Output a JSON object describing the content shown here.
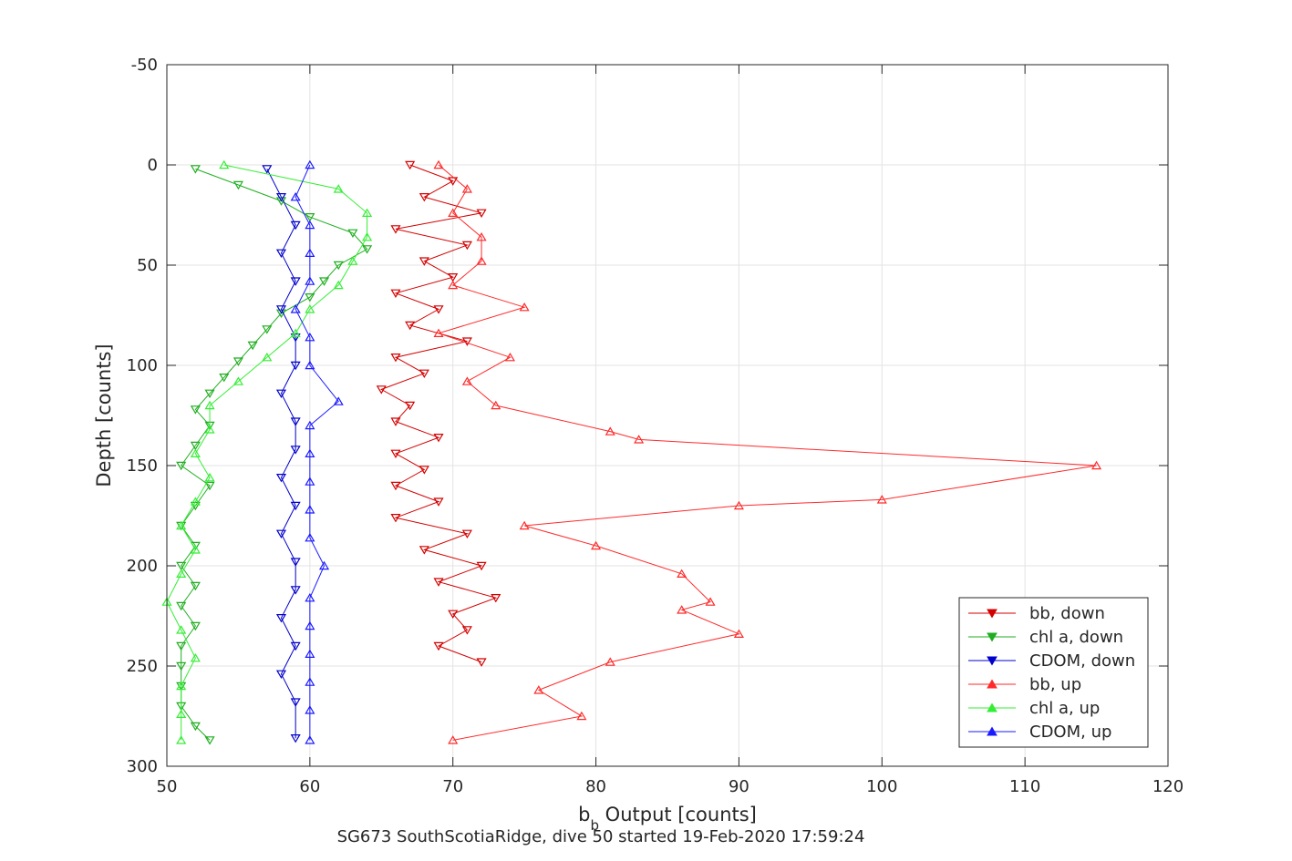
{
  "chart_data": {
    "type": "line",
    "xlabel_main": "b",
    "xlabel_sub": "b",
    "xlabel_rest": " Output [counts]",
    "ylabel": "Depth [counts]",
    "caption": "SG673 SouthScotiaRidge, dive 50 started 19-Feb-2020 17:59:24",
    "xlim": [
      50,
      120
    ],
    "ylim": [
      -50,
      300
    ],
    "y_reversed": true,
    "grid": true,
    "legend_position": "bottom-right",
    "xticks": [
      50,
      60,
      70,
      80,
      90,
      100,
      110,
      120
    ],
    "yticks": [
      -50,
      0,
      50,
      100,
      150,
      200,
      250,
      300
    ],
    "xtick_labels": [
      "50",
      "60",
      "70",
      "80",
      "90",
      "100",
      "110",
      "120"
    ],
    "ytick_labels": [
      "-50",
      "0",
      "50",
      "100",
      "150",
      "200",
      "250",
      "300"
    ],
    "series": [
      {
        "name": "bb, down",
        "color": "#d40000",
        "marker": "triangle-down",
        "depth": [
          0,
          8,
          16,
          24,
          32,
          40,
          48,
          56,
          64,
          72,
          80,
          88,
          96,
          104,
          112,
          120,
          128,
          136,
          144,
          152,
          160,
          168,
          176,
          184,
          192,
          200,
          208,
          216,
          224,
          232,
          240,
          248
        ],
        "values": [
          67,
          70,
          68,
          72,
          66,
          71,
          68,
          70,
          66,
          69,
          67,
          71,
          66,
          68,
          65,
          67,
          66,
          69,
          66,
          68,
          66,
          69,
          66,
          71,
          68,
          72,
          69,
          73,
          70,
          71,
          69,
          72
        ]
      },
      {
        "name": "chl a, down",
        "color": "#1fae1f",
        "marker": "triangle-down",
        "depth": [
          2,
          10,
          18,
          26,
          34,
          42,
          50,
          58,
          66,
          74,
          82,
          90,
          98,
          106,
          114,
          122,
          130,
          140,
          150,
          160,
          170,
          180,
          190,
          200,
          210,
          220,
          230,
          240,
          250,
          260,
          270,
          280,
          287
        ],
        "values": [
          52,
          55,
          58,
          60,
          63,
          64,
          62,
          61,
          60,
          58,
          57,
          56,
          55,
          54,
          53,
          52,
          53,
          52,
          51,
          53,
          52,
          51,
          52,
          51,
          52,
          51,
          52,
          51,
          51,
          51,
          51,
          52,
          53
        ]
      },
      {
        "name": "CDOM, down",
        "color": "#0000cc",
        "marker": "triangle-down",
        "depth": [
          2,
          16,
          30,
          44,
          58,
          72,
          86,
          100,
          114,
          128,
          142,
          156,
          170,
          184,
          198,
          212,
          226,
          240,
          254,
          268,
          286
        ],
        "values": [
          57,
          58,
          59,
          58,
          59,
          58,
          59,
          59,
          58,
          59,
          59,
          58,
          59,
          58,
          59,
          59,
          58,
          59,
          58,
          59,
          59
        ]
      },
      {
        "name": "bb, up",
        "color": "#ff2a2a",
        "marker": "triangle-up",
        "depth": [
          0,
          12,
          24,
          36,
          48,
          60,
          71,
          84,
          96,
          108,
          120,
          133,
          137,
          150,
          167,
          170,
          180,
          190,
          204,
          218,
          222,
          234,
          248,
          262,
          275,
          287
        ],
        "values": [
          69,
          71,
          70,
          72,
          72,
          70,
          75,
          69,
          74,
          71,
          73,
          81,
          83,
          115,
          100,
          90,
          75,
          80,
          86,
          88,
          86,
          90,
          81,
          76,
          79,
          70
        ]
      },
      {
        "name": "chl a, up",
        "color": "#33ee33",
        "marker": "triangle-up",
        "depth": [
          0,
          12,
          24,
          36,
          48,
          60,
          72,
          84,
          96,
          108,
          120,
          132,
          144,
          156,
          168,
          180,
          192,
          204,
          218,
          232,
          246,
          260,
          274,
          287
        ],
        "values": [
          54,
          62,
          64,
          64,
          63,
          62,
          60,
          59,
          57,
          55,
          53,
          53,
          52,
          53,
          52,
          51,
          52,
          51,
          50,
          51,
          52,
          51,
          51,
          51
        ]
      },
      {
        "name": "CDOM, up",
        "color": "#1a1aff",
        "marker": "triangle-up",
        "depth": [
          0,
          16,
          30,
          44,
          58,
          72,
          86,
          100,
          118,
          130,
          144,
          158,
          172,
          186,
          200,
          216,
          230,
          244,
          258,
          272,
          287
        ],
        "values": [
          60,
          59,
          60,
          60,
          60,
          59,
          60,
          60,
          62,
          60,
          60,
          60,
          60,
          60,
          61,
          60,
          60,
          60,
          60,
          60,
          60
        ]
      }
    ]
  }
}
